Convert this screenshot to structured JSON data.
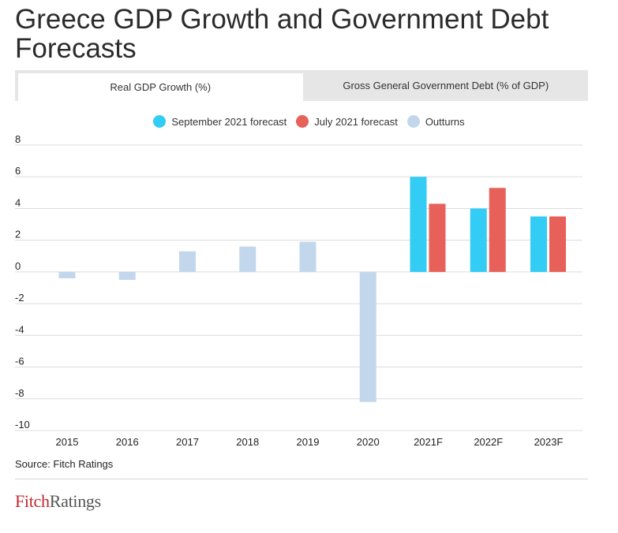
{
  "title": "Greece GDP Growth and Government Debt Forecasts",
  "tabs": [
    {
      "label": "Real GDP Growth (%)",
      "active": true
    },
    {
      "label": "Gross General Government Debt (% of GDP)",
      "active": false
    }
  ],
  "source": "Source: Fitch Ratings",
  "logo": {
    "part1": "Fitch",
    "part2": "Ratings"
  },
  "colors": {
    "september": "#33ccf5",
    "july": "#e8605a",
    "outturns": "#c3d7ec",
    "grid": "#dcdcdc",
    "logo_red": "#c0272d"
  },
  "chart_data": {
    "type": "bar",
    "title": "",
    "xlabel": "",
    "ylabel": "",
    "ylim": [
      -10,
      8
    ],
    "yticks": [
      8,
      6,
      4,
      2,
      0,
      -2,
      -4,
      -6,
      -8,
      -10
    ],
    "grid": true,
    "legend_position": "top-center",
    "categories": [
      "2015",
      "2016",
      "2017",
      "2018",
      "2019",
      "2020",
      "2021F",
      "2022F",
      "2023F"
    ],
    "series": [
      {
        "name": "September 2021 forecast",
        "color": "#33ccf5",
        "values": [
          null,
          null,
          null,
          null,
          null,
          null,
          6.0,
          4.0,
          3.5
        ]
      },
      {
        "name": "July 2021 forecast",
        "color": "#e8605a",
        "values": [
          null,
          null,
          null,
          null,
          null,
          null,
          4.3,
          5.3,
          3.5
        ]
      },
      {
        "name": "Outturns",
        "color": "#c3d7ec",
        "values": [
          -0.4,
          -0.5,
          1.3,
          1.6,
          1.9,
          -8.2,
          null,
          null,
          null
        ]
      }
    ]
  }
}
